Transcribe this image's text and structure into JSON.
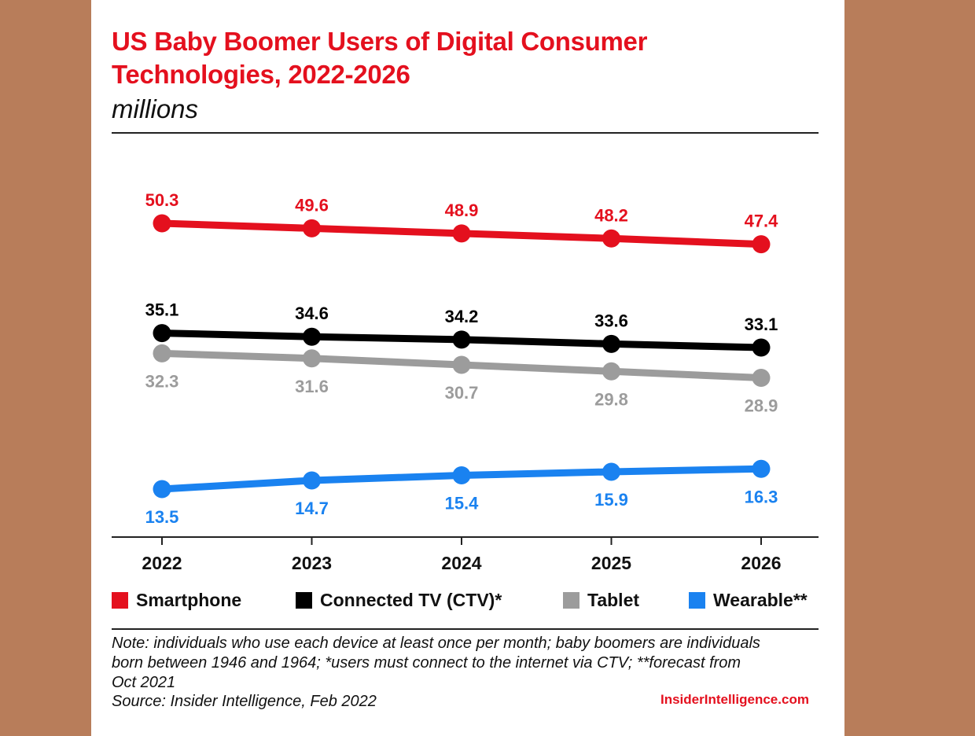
{
  "header": {
    "title_line1": "US Baby Boomer Users of Digital Consumer",
    "title_line2": "Technologies, 2022-2026",
    "subtitle": "millions"
  },
  "chart_data": {
    "type": "line",
    "title": "US Baby Boomer Users of Digital Consumer Technologies, 2022-2026",
    "subtitle": "millions",
    "categories": [
      "2022",
      "2023",
      "2024",
      "2025",
      "2026"
    ],
    "ylabel": "millions",
    "xlabel": "",
    "ylim": [
      10,
      52
    ],
    "grid": false,
    "legend_position": "bottom",
    "series": [
      {
        "name": "Smartphone",
        "color": "#e4101e",
        "values": [
          50.3,
          49.6,
          48.9,
          48.2,
          47.4
        ],
        "labels": [
          "50.3",
          "49.6",
          "48.9",
          "48.2",
          "47.4"
        ],
        "label_position": "above"
      },
      {
        "name": "Connected TV (CTV)*",
        "color": "#000000",
        "values": [
          35.1,
          34.6,
          34.2,
          33.6,
          33.1
        ],
        "labels": [
          "35.1",
          "34.6",
          "34.2",
          "33.6",
          "33.1"
        ],
        "label_position": "above"
      },
      {
        "name": "Tablet",
        "color": "#9c9c9c",
        "values": [
          32.3,
          31.6,
          30.7,
          29.8,
          28.9
        ],
        "labels": [
          "32.3",
          "31.6",
          "30.7",
          "29.8",
          "28.9"
        ],
        "label_position": "below"
      },
      {
        "name": "Wearable**",
        "color": "#1a82f0",
        "values": [
          13.5,
          14.7,
          15.4,
          15.9,
          16.3
        ],
        "labels": [
          "13.5",
          "14.7",
          "15.4",
          "15.9",
          "16.3"
        ],
        "label_position": "below"
      }
    ]
  },
  "footer": {
    "note_line1": "Note: individuals who use each device at least once per month; baby boomers are individuals",
    "note_line2": "born between 1946 and 1964; *users must connect to the internet via CTV; **forecast from",
    "note_line3": "Oct 2021",
    "source": "Source: Insider Intelligence, Feb 2022",
    "brand": "InsiderIntelligence.com"
  }
}
